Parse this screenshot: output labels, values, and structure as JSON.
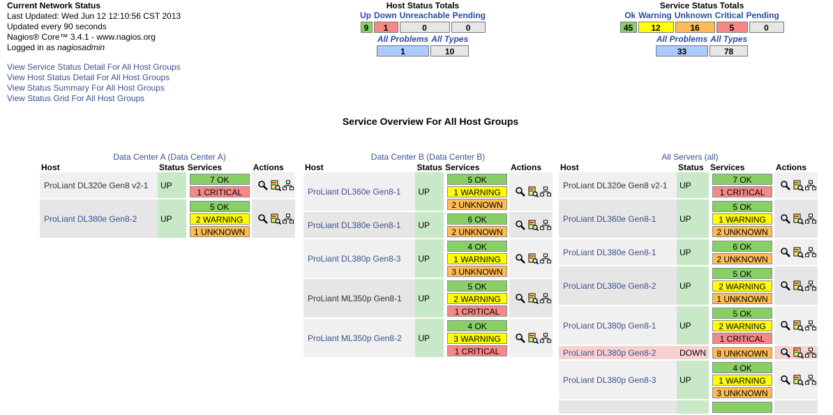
{
  "header": {
    "title": "Current Network Status",
    "last_updated": "Last Updated: Wed Jun 12 12:10:56 CST 2013",
    "update_interval": "Updated every 90 seconds",
    "version": "Nagios® Core™ 3.4.1 - www.nagios.org",
    "logged_in_prefix": "Logged in as ",
    "user": "nagiosadmin"
  },
  "links": [
    "View Service Status Detail For All Host Groups",
    "View Host Status Detail For All Host Groups",
    "View Status Summary For All Host Groups",
    "View Status Grid For All Host Groups"
  ],
  "host_totals": {
    "title": "Host Status Totals",
    "labels": [
      "Up",
      "Down",
      "Unreachable",
      "Pending"
    ],
    "values": [
      "9",
      "1",
      "0",
      "0"
    ],
    "problem_labels": [
      "All Problems",
      "All Types"
    ],
    "problem_values": [
      "1",
      "10"
    ]
  },
  "service_totals": {
    "title": "Service Status Totals",
    "labels": [
      "Ok",
      "Warning",
      "Unknown",
      "Critical",
      "Pending"
    ],
    "values": [
      "45",
      "12",
      "16",
      "5",
      "0"
    ],
    "problem_labels": [
      "All Problems",
      "All Types"
    ],
    "problem_values": [
      "33",
      "78"
    ]
  },
  "overview_title": "Service Overview For All Host Groups",
  "columns": [
    "Host",
    "Status",
    "Services",
    "Actions"
  ],
  "hostgroups": [
    {
      "title": "Data Center A",
      "alias": " (Data Center A)",
      "hosts": [
        {
          "name": "ProLiant DL320e Gen8 v2-1",
          "status": "UP",
          "services": [
            {
              "label": "7 OK",
              "state": "ok"
            },
            {
              "label": "1 CRITICAL",
              "state": "crit"
            }
          ]
        },
        {
          "name": "ProLiant DL380e Gen8-2",
          "status": "UP",
          "services": [
            {
              "label": "5 OK",
              "state": "ok"
            },
            {
              "label": "2 WARNING",
              "state": "warn"
            },
            {
              "label": "1 UNKNOWN",
              "state": "unk"
            }
          ]
        }
      ]
    },
    {
      "title": "Data Center B",
      "alias": " (Data Center B)",
      "hosts": [
        {
          "name": "ProLiant DL360e Gen8-1",
          "status": "UP",
          "services": [
            {
              "label": "5 OK",
              "state": "ok"
            },
            {
              "label": "1 WARNING",
              "state": "warn"
            },
            {
              "label": "2 UNKNOWN",
              "state": "unk"
            }
          ]
        },
        {
          "name": "ProLiant DL380e Gen8-1",
          "status": "UP",
          "services": [
            {
              "label": "6 OK",
              "state": "ok"
            },
            {
              "label": "2 UNKNOWN",
              "state": "unk"
            }
          ]
        },
        {
          "name": "ProLiant DL380p Gen8-3",
          "status": "UP",
          "services": [
            {
              "label": "4 OK",
              "state": "ok"
            },
            {
              "label": "1 WARNING",
              "state": "warn"
            },
            {
              "label": "3 UNKNOWN",
              "state": "unk"
            }
          ]
        },
        {
          "name": "ProLiant ML350p Gen8-1",
          "status": "UP",
          "services": [
            {
              "label": "5 OK",
              "state": "ok"
            },
            {
              "label": "2 WARNING",
              "state": "warn"
            },
            {
              "label": "1 CRITICAL",
              "state": "crit"
            }
          ]
        },
        {
          "name": "ProLiant ML350p Gen8-2",
          "status": "UP",
          "services": [
            {
              "label": "4 OK",
              "state": "ok"
            },
            {
              "label": "3 WARNING",
              "state": "warn"
            },
            {
              "label": "1 CRITICAL",
              "state": "crit"
            }
          ]
        }
      ]
    },
    {
      "title": "All Servers",
      "alias": " (all)",
      "hosts": [
        {
          "name": "ProLiant DL320e Gen8 v2-1",
          "status": "UP",
          "services": [
            {
              "label": "7 OK",
              "state": "ok"
            },
            {
              "label": "1 CRITICAL",
              "state": "crit"
            }
          ]
        },
        {
          "name": "ProLiant DL360e Gen8-1",
          "status": "UP",
          "services": [
            {
              "label": "5 OK",
              "state": "ok"
            },
            {
              "label": "1 WARNING",
              "state": "warn"
            },
            {
              "label": "2 UNKNOWN",
              "state": "unk"
            }
          ]
        },
        {
          "name": "ProLiant DL380e Gen8-1",
          "status": "UP",
          "services": [
            {
              "label": "6 OK",
              "state": "ok"
            },
            {
              "label": "2 UNKNOWN",
              "state": "unk"
            }
          ]
        },
        {
          "name": "ProLiant DL380e Gen8-2",
          "status": "UP",
          "services": [
            {
              "label": "5 OK",
              "state": "ok"
            },
            {
              "label": "2 WARNING",
              "state": "warn"
            },
            {
              "label": "1 UNKNOWN",
              "state": "unk"
            }
          ]
        },
        {
          "name": "ProLiant DL380p Gen8-1",
          "status": "UP",
          "services": [
            {
              "label": "5 OK",
              "state": "ok"
            },
            {
              "label": "2 WARNING",
              "state": "warn"
            },
            {
              "label": "1 CRITICAL",
              "state": "crit"
            }
          ]
        },
        {
          "name": "ProLiant DL380p Gen8-2",
          "status": "DOWN",
          "services": [
            {
              "label": "8 UNKNOWN",
              "state": "unk"
            }
          ]
        },
        {
          "name": "ProLiant DL380p Gen8-3",
          "status": "UP",
          "services": [
            {
              "label": "4 OK",
              "state": "ok"
            },
            {
              "label": "1 WARNING",
              "state": "warn"
            },
            {
              "label": "3 UNKNOWN",
              "state": "unk"
            }
          ]
        },
        {
          "name": "",
          "status": "",
          "services": [
            {
              "label": "",
              "state": "ok"
            }
          ]
        }
      ]
    }
  ],
  "colors": {
    "ok": "#88d066",
    "warning": "#ffff00",
    "unknown": "#ffbb55",
    "critical": "#f88888",
    "pending": "#e6e6e6",
    "problems": "#aaccff",
    "link": "#3f4f8f",
    "header_link": "#2b4aa5"
  },
  "icons": [
    "search-icon",
    "service-detail-icon",
    "status-map-icon"
  ]
}
